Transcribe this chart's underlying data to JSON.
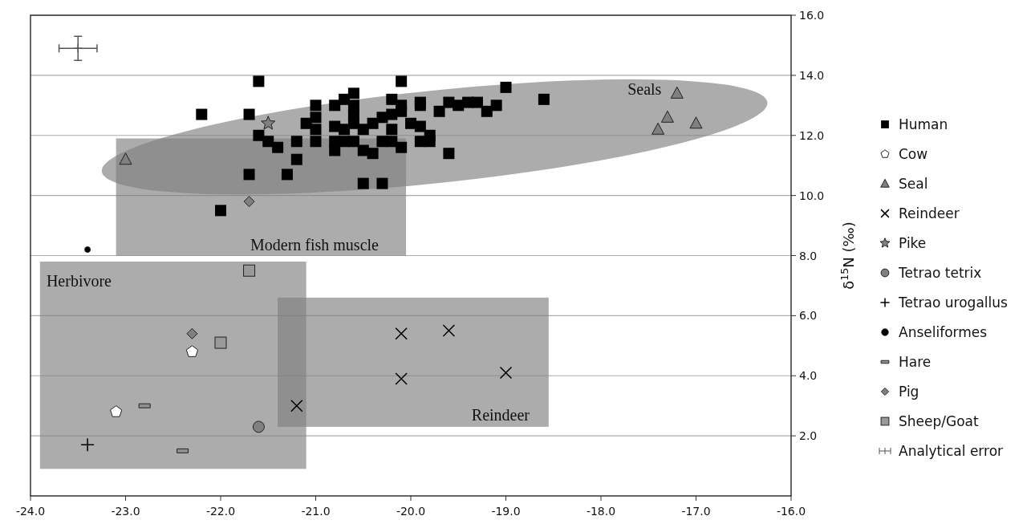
{
  "chart_data": {
    "type": "scatter",
    "ylabel": "δ$^{15}$N (‰)",
    "xlim": [
      -24,
      -16
    ],
    "ylim": [
      0,
      16
    ],
    "xticks": [
      {
        "value": -24,
        "label": "-24.0"
      },
      {
        "value": -23,
        "label": "-23.0"
      },
      {
        "value": -22,
        "label": "-22.0"
      },
      {
        "value": -21,
        "label": "-21.0"
      },
      {
        "value": -20,
        "label": "-20.0"
      },
      {
        "value": -19,
        "label": "-19.0"
      },
      {
        "value": -18,
        "label": "-18.0"
      },
      {
        "value": -17,
        "label": "-17.0"
      },
      {
        "value": -16,
        "label": "-16.0"
      }
    ],
    "yticks": [
      {
        "value": 2,
        "label": "2.0"
      },
      {
        "value": 4,
        "label": "4.0"
      },
      {
        "value": 6,
        "label": "6.0"
      },
      {
        "value": 8,
        "label": "8.0"
      },
      {
        "value": 10,
        "label": "10.0"
      },
      {
        "value": 12,
        "label": "12.0"
      },
      {
        "value": 14,
        "label": "14.0"
      },
      {
        "value": 16,
        "label": "16.0"
      }
    ],
    "grid": "y",
    "legend": "right",
    "annotations": [
      "Seals",
      "Modern fish muscle",
      "Herbivore",
      "Reindeer"
    ],
    "series": [
      {
        "name": "Human",
        "color": "#000000",
        "marker": "square",
        "x": [
          -21.6,
          -20.1,
          -22.2,
          -21.7,
          -21.0,
          -20.6,
          -20.7,
          -20.8,
          -20.6,
          -20.6,
          -21.1,
          -21.0,
          -21.0,
          -20.8,
          -20.7,
          -20.6,
          -20.5,
          -20.4,
          -20.3,
          -20.2,
          -20.1,
          -20.2,
          -20.2,
          -20.1,
          -20.0,
          -19.9,
          -19.9,
          -19.9,
          -19.7,
          -19.6,
          -19.5,
          -19.4,
          -19.3,
          -19.2,
          -19.1,
          -19.0,
          -18.6,
          -19.8,
          -19.8,
          -19.9,
          -21.6,
          -21.5,
          -21.4,
          -21.2,
          -21.0,
          -20.8,
          -20.8,
          -20.7,
          -20.6,
          -20.5,
          -20.4,
          -20.3,
          -20.2,
          -20.1,
          -21.2,
          -19.6,
          -21.7,
          -21.3,
          -20.5,
          -20.3,
          -22.0
        ],
        "values": [
          13.8,
          13.8,
          12.7,
          12.7,
          13.0,
          13.4,
          13.2,
          13.0,
          13.0,
          12.7,
          12.4,
          12.6,
          12.2,
          12.3,
          12.2,
          12.4,
          12.2,
          12.4,
          12.6,
          13.2,
          13.0,
          12.7,
          12.2,
          12.8,
          12.4,
          12.3,
          13.1,
          13.0,
          12.8,
          13.1,
          13.0,
          13.1,
          13.1,
          12.8,
          13.0,
          13.6,
          13.2,
          12.0,
          11.8,
          11.8,
          12.0,
          11.8,
          11.6,
          11.8,
          11.8,
          11.8,
          11.5,
          11.8,
          11.8,
          11.5,
          11.4,
          11.8,
          11.8,
          11.6,
          11.2,
          11.4,
          10.7,
          10.7,
          10.4,
          10.4,
          9.5
        ]
      },
      {
        "name": "Cow",
        "color": "#ffffff",
        "x": [
          -22.3,
          -23.1
        ],
        "values": [
          4.8,
          2.8
        ]
      },
      {
        "name": "Seal",
        "color": "#808080",
        "marker": "triangle",
        "x": [
          -17.2,
          -17.3,
          -17.4,
          -17.0,
          -23.0
        ],
        "values": [
          13.4,
          12.6,
          12.2,
          12.4,
          11.2
        ]
      },
      {
        "name": "Reindeer",
        "color": "#000000",
        "marker": "cross",
        "x": [
          -21.2,
          -20.1,
          -19.6,
          -20.1,
          -19.0
        ],
        "values": [
          3.0,
          5.4,
          5.5,
          3.9,
          4.1
        ]
      },
      {
        "name": "Pike",
        "color": "#808080",
        "marker": "star",
        "x": [
          -21.5
        ],
        "values": [
          12.4
        ]
      },
      {
        "name": "Tetrao tetrix",
        "color": "#808080",
        "marker": "circle",
        "x": [
          -21.6
        ],
        "values": [
          2.3
        ]
      },
      {
        "name": "Tetrao urogallus",
        "color": "#000000",
        "x": [
          -23.4
        ],
        "values": [
          1.7
        ]
      },
      {
        "name": "Anseliformes",
        "color": "#000000",
        "marker": "circle",
        "x": [
          -23.4
        ],
        "values": [
          8.2
        ]
      },
      {
        "name": "Hare",
        "color": "#909090",
        "x": [
          -22.8,
          -22.4
        ],
        "values": [
          3.0,
          1.5
        ]
      },
      {
        "name": "Pig",
        "color": "#808080",
        "marker": "diamond",
        "x": [
          -21.7,
          -22.3
        ],
        "values": [
          9.8,
          5.4
        ]
      },
      {
        "name": "Sheep/Goat",
        "color": "#999999",
        "marker": "square",
        "x": [
          -21.7,
          -22.0
        ],
        "values": [
          7.5,
          5.1
        ]
      },
      {
        "name": "Analytical error",
        "color": "#555555",
        "x": [
          -23.5
        ],
        "values": [
          14.9
        ],
        "errors": [
          0.4
        ],
        "xerrors": [
          0.2
        ]
      }
    ]
  }
}
